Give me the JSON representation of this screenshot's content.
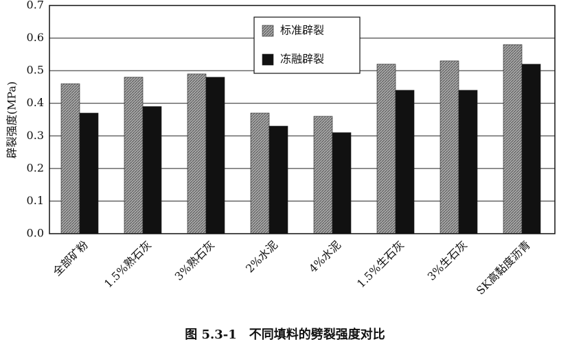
{
  "chart_data": {
    "type": "bar",
    "categories": [
      "全部矿粉",
      "1.5%熟石灰",
      "3%熟石灰",
      "2%水泥",
      "4%水泥",
      "1.5%生石灰",
      "3%生石灰",
      "SK高黏度沥青"
    ],
    "series": [
      {
        "name": "标准辟裂",
        "color": "#a8a8a8",
        "values": [
          0.46,
          0.48,
          0.49,
          0.37,
          0.36,
          0.52,
          0.53,
          0.58
        ]
      },
      {
        "name": "冻融辟裂",
        "color": "#111111",
        "values": [
          0.37,
          0.39,
          0.48,
          0.33,
          0.31,
          0.44,
          0.44,
          0.52
        ]
      }
    ],
    "y_label": "辟裂强度(MPa)",
    "caption": "图 5.3-1　不同填料的劈裂强度对比",
    "ylim": [
      0,
      0.7
    ],
    "yticks": [
      {
        "value": 0,
        "label": "0.0"
      },
      0.1,
      0.2,
      0.3,
      0.4,
      0.5,
      0.6,
      0.7
    ],
    "grid": true,
    "legend": "upper center"
  }
}
